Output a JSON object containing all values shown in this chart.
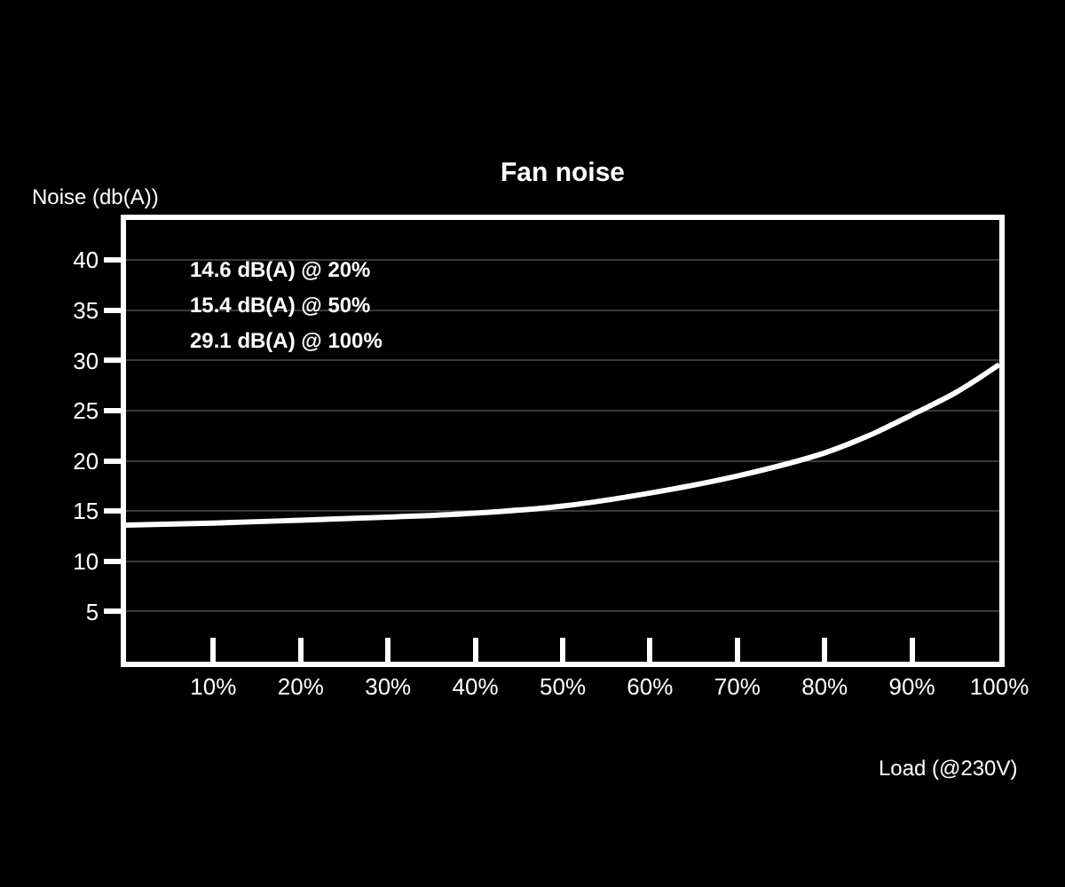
{
  "chart_data": {
    "type": "line",
    "title": "Fan noise",
    "xlabel": "Load (@230V)",
    "ylabel": "Noise (db(A))",
    "x": [
      0,
      10,
      20,
      30,
      40,
      50,
      60,
      70,
      80,
      85,
      90,
      95,
      100
    ],
    "series": [
      {
        "color": "#ffffff",
        "values": [
          13.6,
          13.8,
          14.1,
          14.4,
          14.8,
          15.5,
          16.8,
          18.5,
          20.8,
          22.5,
          24.6,
          26.8,
          29.6
        ]
      }
    ],
    "xlim": [
      0,
      100
    ],
    "xticks": [
      {
        "value": 10,
        "label": "10%"
      },
      {
        "value": 20,
        "label": "20%"
      },
      {
        "value": 30,
        "label": "30%"
      },
      {
        "value": 40,
        "label": "40%"
      },
      {
        "value": 50,
        "label": "50%"
      },
      {
        "value": 60,
        "label": "60%"
      },
      {
        "value": 70,
        "label": "70%"
      },
      {
        "value": 80,
        "label": "80%"
      },
      {
        "value": 90,
        "label": "90%"
      },
      {
        "value": 100,
        "label": "100%"
      }
    ],
    "ylim": [
      0,
      44
    ],
    "yticks": [
      5,
      10,
      15,
      20,
      25,
      30,
      35,
      40
    ],
    "grid": "y",
    "marker": "none",
    "line_style": "solid",
    "annotations": [
      "14.6 dB(A) @ 20%",
      "15.4 dB(A) @ 50%",
      "29.1 dB(A) @ 100%"
    ]
  }
}
